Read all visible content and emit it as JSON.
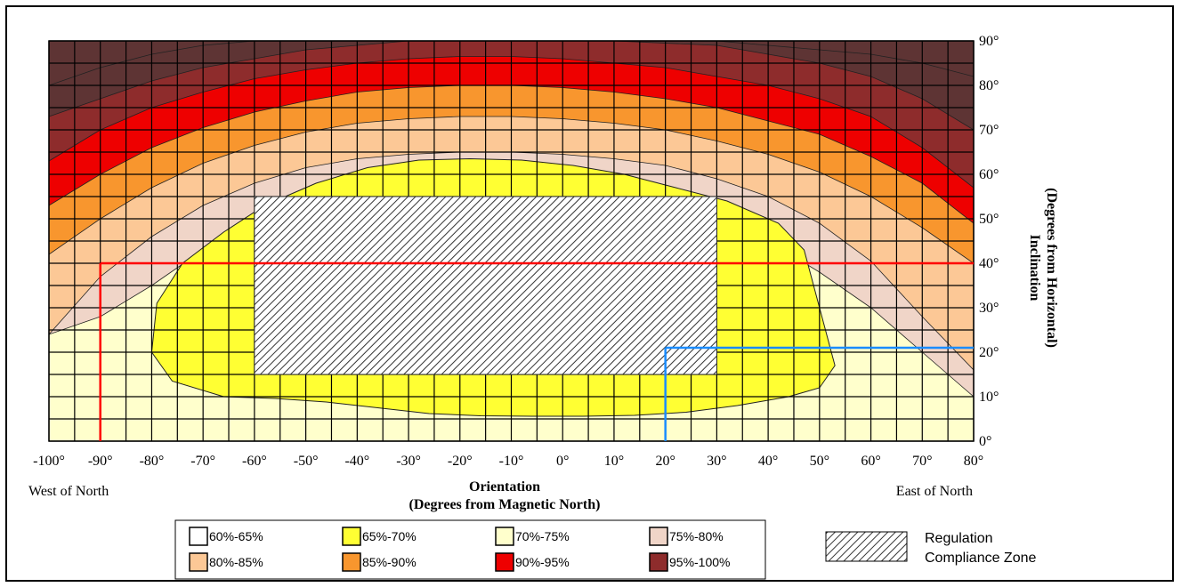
{
  "chart_data": {
    "type": "heatmap",
    "x_axis": {
      "label": "Orientation",
      "sublabel": "(Degrees from Magnetic North)",
      "range": [
        -100,
        80
      ],
      "ticks": [
        "-100°",
        "-90°",
        "-80°",
        "-70°",
        "-60°",
        "-50°",
        "-40°",
        "-30°",
        "-20°",
        "-10°",
        "0°",
        "10°",
        "20°",
        "30°",
        "40°",
        "50°",
        "60°",
        "70°",
        "80°"
      ],
      "left_note": "West of North",
      "right_note": "East of North"
    },
    "y_axis": {
      "label": "Inclination",
      "sublabel": "(Degrees from Horizontal)",
      "range": [
        0,
        90
      ],
      "ticks": [
        "0°",
        "10°",
        "20°",
        "30°",
        "40°",
        "50°",
        "60°",
        "70°",
        "80°",
        "90°"
      ]
    },
    "legend": [
      {
        "label": "60%-65%",
        "color": "#ffffff"
      },
      {
        "label": "65%-70%",
        "color": "#ffff33"
      },
      {
        "label": "70%-75%",
        "color": "#ffffcc"
      },
      {
        "label": "75%-80%",
        "color": "#f0d5c8"
      },
      {
        "label": "80%-85%",
        "color": "#fcc896"
      },
      {
        "label": "85%-90%",
        "color": "#f8962e"
      },
      {
        "label": "90%-95%",
        "color": "#ee0000"
      },
      {
        "label": "95%-100%",
        "color": "#8e2c2c"
      }
    ],
    "compliance_zone": {
      "label_line1": "Regulation",
      "label_line2": "Compliance Zone",
      "orientation_range": [
        -60,
        30
      ],
      "inclination_range": [
        15,
        55
      ]
    },
    "marker_red": {
      "orientation": -90,
      "inclination": 40,
      "color": "#ff0000"
    },
    "marker_blue": {
      "orientation": 20,
      "inclination": 21,
      "color": "#1a8cff"
    },
    "bands": [
      {
        "range": "95%-100%",
        "color": "#5e3434",
        "boundary": [
          [
            -100,
            80
          ],
          [
            -90,
            84
          ],
          [
            -80,
            87
          ],
          [
            -70,
            89
          ],
          [
            -60,
            90
          ],
          [
            30,
            90
          ],
          [
            40,
            89
          ],
          [
            50,
            88
          ],
          [
            60,
            87
          ],
          [
            70,
            85
          ],
          [
            80,
            82
          ]
        ]
      },
      {
        "range": "95%-100%",
        "color": "#8e2c2c",
        "boundary": [
          [
            -100,
            73
          ],
          [
            -90,
            77
          ],
          [
            -80,
            81
          ],
          [
            -70,
            84
          ],
          [
            -60,
            86
          ],
          [
            -50,
            88
          ],
          [
            -40,
            89
          ],
          [
            -30,
            90
          ],
          [
            10,
            90
          ],
          [
            30,
            89
          ],
          [
            40,
            87
          ],
          [
            50,
            85
          ],
          [
            60,
            82
          ],
          [
            70,
            77
          ],
          [
            80,
            70
          ]
        ]
      },
      {
        "range": "90%-95%",
        "color": "#ee0000",
        "boundary": [
          [
            -100,
            63
          ],
          [
            -90,
            70
          ],
          [
            -80,
            75
          ],
          [
            -70,
            78.5
          ],
          [
            -60,
            81.5
          ],
          [
            -50,
            83.5
          ],
          [
            -40,
            85
          ],
          [
            -30,
            86
          ],
          [
            -20,
            86.5
          ],
          [
            -10,
            86.5
          ],
          [
            0,
            86
          ],
          [
            10,
            85
          ],
          [
            20,
            84
          ],
          [
            30,
            82
          ],
          [
            40,
            80
          ],
          [
            50,
            77
          ],
          [
            60,
            73
          ],
          [
            70,
            66
          ],
          [
            80,
            57
          ]
        ]
      },
      {
        "range": "85%-90%",
        "color": "#f8962e",
        "boundary": [
          [
            -100,
            53
          ],
          [
            -90,
            60
          ],
          [
            -80,
            66
          ],
          [
            -70,
            70.5
          ],
          [
            -60,
            74
          ],
          [
            -50,
            76.5
          ],
          [
            -40,
            78.5
          ],
          [
            -30,
            79.5
          ],
          [
            -20,
            80
          ],
          [
            -10,
            80
          ],
          [
            0,
            79.5
          ],
          [
            10,
            78.5
          ],
          [
            20,
            77
          ],
          [
            30,
            75
          ],
          [
            40,
            72
          ],
          [
            50,
            69
          ],
          [
            60,
            64
          ],
          [
            70,
            58
          ],
          [
            80,
            49
          ]
        ]
      },
      {
        "range": "80%-85%",
        "color": "#fcc896",
        "boundary": [
          [
            -100,
            42
          ],
          [
            -90,
            50
          ],
          [
            -80,
            57
          ],
          [
            -70,
            62.5
          ],
          [
            -60,
            66.5
          ],
          [
            -50,
            69.5
          ],
          [
            -40,
            71.5
          ],
          [
            -30,
            72.5
          ],
          [
            -20,
            73
          ],
          [
            -10,
            73
          ],
          [
            0,
            72.5
          ],
          [
            10,
            71.5
          ],
          [
            20,
            70
          ],
          [
            30,
            67.5
          ],
          [
            40,
            64.5
          ],
          [
            50,
            60.5
          ],
          [
            60,
            55
          ],
          [
            70,
            48
          ],
          [
            80,
            40
          ]
        ]
      },
      {
        "range": "75%-80%",
        "color": "#f0d5c8",
        "boundary": [
          [
            -100,
            24
          ],
          [
            -90,
            37
          ],
          [
            -80,
            46
          ],
          [
            -70,
            53
          ],
          [
            -60,
            58
          ],
          [
            -50,
            61.5
          ],
          [
            -40,
            63.5
          ],
          [
            -30,
            64.5
          ],
          [
            -20,
            65
          ],
          [
            -10,
            65
          ],
          [
            0,
            64.5
          ],
          [
            10,
            63.5
          ],
          [
            20,
            62
          ],
          [
            30,
            59
          ],
          [
            40,
            55
          ],
          [
            50,
            49
          ],
          [
            60,
            40.5
          ],
          [
            70,
            28
          ],
          [
            80,
            16
          ]
        ]
      },
      {
        "range": "70%-75%",
        "color": "#ffffcc",
        "boundary": [
          [
            -100,
            0
          ],
          [
            -100,
            90
          ],
          [
            80,
            90
          ],
          [
            80,
            0
          ]
        ]
      },
      {
        "range": "65%-70%",
        "color": "#ffff33",
        "boundary": [
          [
            -80,
            20
          ],
          [
            -79,
            31
          ],
          [
            -74,
            40
          ],
          [
            -66,
            47
          ],
          [
            -58,
            53
          ],
          [
            -48,
            58
          ],
          [
            -38,
            61.5
          ],
          [
            -28,
            63.2
          ],
          [
            -18,
            63.5
          ],
          [
            -8,
            63.2
          ],
          [
            2,
            62
          ],
          [
            12,
            60
          ],
          [
            22,
            57
          ],
          [
            32,
            54
          ],
          [
            42,
            49
          ],
          [
            47,
            43
          ],
          [
            50,
            30
          ],
          [
            53,
            17
          ],
          [
            50,
            12
          ],
          [
            44,
            10
          ],
          [
            34,
            8
          ],
          [
            24,
            6.5
          ],
          [
            14,
            5.8
          ],
          [
            4,
            5.6
          ],
          [
            -6,
            5.6
          ],
          [
            -16,
            5.7
          ],
          [
            -26,
            6.2
          ],
          [
            -36,
            7.5
          ],
          [
            -46,
            8.8
          ],
          [
            -56,
            9.6
          ],
          [
            -66,
            10
          ],
          [
            -76,
            13.5
          ]
        ]
      }
    ]
  }
}
